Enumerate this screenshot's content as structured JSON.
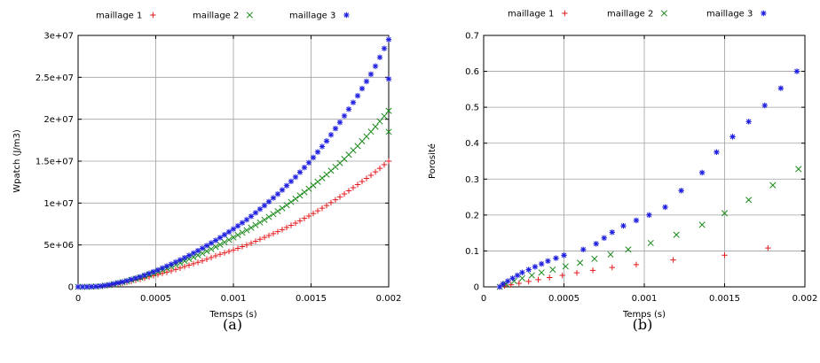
{
  "chart_data": [
    {
      "type": "scatter",
      "caption": "(a)",
      "xlabel": "Temsps (s)",
      "ylabel": "Wpatch (J/m3)",
      "xlim": [
        0,
        0.002
      ],
      "ylim": [
        0,
        30000000
      ],
      "xticks": [
        "0",
        "0.0005",
        "0.001",
        "0.0015",
        "0.002"
      ],
      "xtick_values": [
        0,
        0.0005,
        0.001,
        0.0015,
        0.002
      ],
      "yticks": [
        "0",
        "5e+06",
        "1e+07",
        "1.5e+07",
        "2e+07",
        "2.5e+07",
        "3e+07"
      ],
      "ytick_values": [
        0,
        5000000,
        10000000,
        15000000,
        20000000,
        25000000,
        30000000
      ],
      "grid": true,
      "legend_position": "top",
      "series": [
        {
          "name": "maillage 1",
          "color": "#e41a1c",
          "marker": "plus",
          "x": [
            0,
            5e-05,
            0.0001,
            0.00015,
            0.0002,
            0.0003,
            0.0004,
            0.0005,
            0.0006,
            0.0007,
            0.0008,
            0.0009,
            0.001,
            0.0011,
            0.0012,
            0.0013,
            0.0014,
            0.0015,
            0.0016,
            0.0017,
            0.0018,
            0.0019,
            0.002
          ],
          "y": [
            0,
            0,
            20000,
            80000,
            200000,
            500000,
            900000,
            1400000,
            1900000,
            2500000,
            3100000,
            3800000,
            4400000,
            5100000,
            5900000,
            6700000,
            7600000,
            8600000,
            9700000,
            10900000,
            12200000,
            13500000,
            15000000
          ]
        },
        {
          "name": "maillage 2",
          "color": "#1a8a1a",
          "marker": "cross",
          "x": [
            0,
            5e-05,
            0.0001,
            0.00015,
            0.0002,
            0.0003,
            0.0004,
            0.0005,
            0.0006,
            0.0007,
            0.0008,
            0.0009,
            0.001,
            0.0011,
            0.0012,
            0.0013,
            0.0014,
            0.0015,
            0.0016,
            0.0017,
            0.0018,
            0.0019,
            0.002,
            0.002
          ],
          "y": [
            0,
            0,
            20000,
            90000,
            220000,
            600000,
            1100000,
            1700000,
            2400000,
            3200000,
            4000000,
            4900000,
            5900000,
            6900000,
            8000000,
            9200000,
            10500000,
            11900000,
            13400000,
            15000000,
            16800000,
            18800000,
            21000000,
            18500000
          ]
        },
        {
          "name": "maillage 3",
          "color": "#1f1fe0",
          "marker": "star",
          "x": [
            0,
            5e-05,
            0.0001,
            0.00015,
            0.0002,
            0.0003,
            0.0004,
            0.0005,
            0.0006,
            0.0007,
            0.0008,
            0.0009,
            0.001,
            0.0011,
            0.0012,
            0.0013,
            0.0014,
            0.0015,
            0.0016,
            0.0017,
            0.0018,
            0.0019,
            0.002,
            0.002
          ],
          "y": [
            0,
            0,
            30000,
            100000,
            250000,
            650000,
            1200000,
            1900000,
            2700000,
            3600000,
            4600000,
            5700000,
            6900000,
            8200000,
            9700000,
            11300000,
            13100000,
            15100000,
            17400000,
            20000000,
            22800000,
            25800000,
            29500000,
            24800000
          ]
        }
      ]
    },
    {
      "type": "scatter",
      "caption": "(b)",
      "xlabel": "Temps (s)",
      "ylabel": "Porosité",
      "xlim": [
        0,
        0.002
      ],
      "ylim": [
        0,
        0.7
      ],
      "xticks": [
        "0",
        "0.0005",
        "0.001",
        "0.0015",
        "0.002"
      ],
      "xtick_values": [
        0,
        0.0005,
        0.001,
        0.0015,
        0.002
      ],
      "yticks": [
        "0",
        "0.1",
        "0.2",
        "0.3",
        "0.4",
        "0.5",
        "0.6",
        "0.7"
      ],
      "ytick_values": [
        0,
        0.1,
        0.2,
        0.3,
        0.4,
        0.5,
        0.6,
        0.7
      ],
      "grid": true,
      "legend_position": "top",
      "series": [
        {
          "name": "maillage 1",
          "color": "#e41a1c",
          "marker": "plus",
          "x": [
            0.0001,
            0.00013,
            0.00017,
            0.00022,
            0.00028,
            0.00034,
            0.00041,
            0.00049,
            0.00058,
            0.00068,
            0.0008,
            0.00095,
            0.00118,
            0.0015,
            0.00177
          ],
          "y": [
            0.0,
            0.003,
            0.006,
            0.01,
            0.015,
            0.02,
            0.026,
            0.032,
            0.039,
            0.046,
            0.054,
            0.062,
            0.075,
            0.088,
            0.108
          ]
        },
        {
          "name": "maillage 2",
          "color": "#1a8a1a",
          "marker": "cross",
          "x": [
            0.0001,
            0.00014,
            0.00019,
            0.00024,
            0.0003,
            0.00036,
            0.00043,
            0.00051,
            0.0006,
            0.00069,
            0.00079,
            0.0009,
            0.00104,
            0.0012,
            0.00136,
            0.0015,
            0.00165,
            0.0018,
            0.00196
          ],
          "y": [
            0.0,
            0.008,
            0.016,
            0.024,
            0.032,
            0.04,
            0.048,
            0.057,
            0.067,
            0.078,
            0.09,
            0.104,
            0.122,
            0.145,
            0.173,
            0.205,
            0.242,
            0.283,
            0.328
          ]
        },
        {
          "name": "maillage 3",
          "color": "#1f1fe0",
          "marker": "star",
          "x": [
            0.0001,
            0.00012,
            0.00015,
            0.00018,
            0.00021,
            0.00024,
            0.00028,
            0.00032,
            0.00036,
            0.0004,
            0.00045,
            0.0005,
            0.00062,
            0.0007,
            0.00075,
            0.0008,
            0.00087,
            0.00095,
            0.00103,
            0.00113,
            0.00123,
            0.00136,
            0.00145,
            0.00155,
            0.00165,
            0.00175,
            0.00185,
            0.00195
          ],
          "y": [
            0.0,
            0.008,
            0.016,
            0.024,
            0.032,
            0.04,
            0.048,
            0.056,
            0.064,
            0.072,
            0.08,
            0.088,
            0.104,
            0.12,
            0.136,
            0.152,
            0.17,
            0.185,
            0.2,
            0.222,
            0.268,
            0.318,
            0.375,
            0.418,
            0.46,
            0.505,
            0.553,
            0.6
          ]
        }
      ]
    }
  ]
}
